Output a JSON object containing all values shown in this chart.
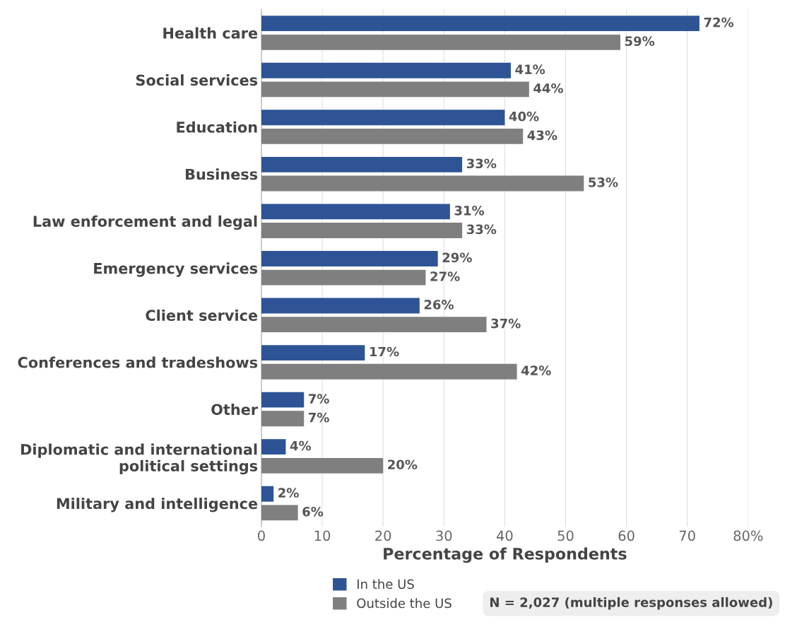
{
  "chart_data": {
    "type": "bar",
    "orientation": "horizontal",
    "xlabel": "Percentage of Respondents",
    "categories": [
      "Health care",
      "Social services",
      "Education",
      "Business",
      "Law enforcement and legal",
      "Emergency services",
      "Client service",
      "Conferences and tradeshows",
      "Other",
      "Diplomatic and international\npolitical settings",
      "Military and intelligence"
    ],
    "series": [
      {
        "name": "In the US",
        "color": "#2e5496",
        "values": [
          72,
          41,
          40,
          33,
          31,
          29,
          26,
          17,
          7,
          4,
          2
        ],
        "value_labels": [
          "72%",
          "41%",
          "40%",
          "33%",
          "31%",
          "29%",
          "26%",
          "17%",
          "7%",
          "4%",
          "2%"
        ]
      },
      {
        "name": "Outside the US",
        "color": "#7f7f7f",
        "values": [
          59,
          44,
          43,
          53,
          33,
          27,
          37,
          42,
          7,
          20,
          6
        ],
        "value_labels": [
          "59%",
          "44%",
          "43%",
          "53%",
          "33%",
          "27%",
          "37%",
          "42%",
          "7%",
          "20%",
          "6%"
        ]
      }
    ],
    "xlim": [
      0,
      80
    ],
    "xticks": [
      0,
      10,
      20,
      30,
      40,
      50,
      60,
      70,
      {
        "value": 80,
        "label": "80%"
      }
    ],
    "grid": "x",
    "legend": "bottom",
    "annotations": [
      "N = 2,027 (multiple responses allowed)"
    ]
  }
}
